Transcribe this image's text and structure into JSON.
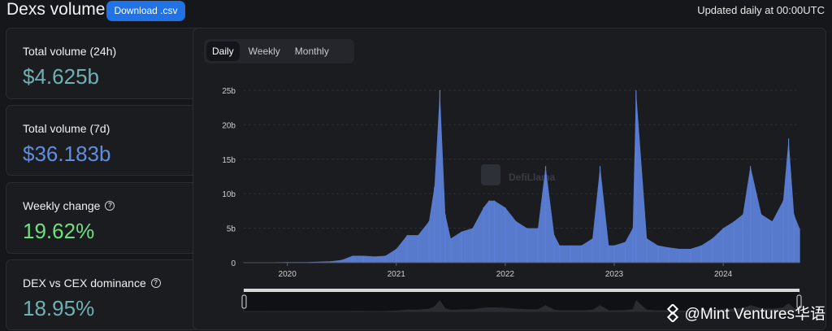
{
  "header": {
    "title": "Dexs volume",
    "download_label": "Download .csv",
    "updated": "Updated daily at 00:00UTC"
  },
  "cards": [
    {
      "label": "Total volume (24h)",
      "value": "$4.625b",
      "color": "#6fb0b4",
      "help": false
    },
    {
      "label": "Total volume (7d)",
      "value": "$36.183b",
      "color": "#5f8de0",
      "help": false
    },
    {
      "label": "Weekly change",
      "value": "19.62%",
      "color": "#6fe07f",
      "help": true
    },
    {
      "label": "DEX vs CEX dominance",
      "value": "18.95%",
      "color": "#6fb0b4",
      "help": true
    }
  ],
  "tabs": [
    "Daily",
    "Weekly",
    "Monthly"
  ],
  "active_tab": "Daily",
  "brand": {
    "watermark": "DefiLlama",
    "overlay_text": "@Mint Ventures华语"
  },
  "chart_data": {
    "type": "bar",
    "title": "",
    "xlabel": "",
    "ylabel": "",
    "series_color": "#5c7fd6",
    "y_ticks": [
      "25b",
      "20b",
      "15b",
      "10b",
      "5b",
      "0"
    ],
    "y_tick_values": [
      25,
      20,
      15,
      10,
      5,
      0
    ],
    "x_ticks": [
      "2020",
      "2021",
      "2022",
      "2023",
      "2024"
    ],
    "ylim": [
      0,
      25
    ],
    "xlim": [
      2019.6,
      2024.7
    ],
    "series": [
      {
        "x": [
          2019.6,
          2019.8,
          2020.0,
          2020.2,
          2020.4,
          2020.5,
          2020.6,
          2020.7,
          2020.8,
          2020.9,
          2021.0,
          2021.1,
          2021.2,
          2021.3,
          2021.35,
          2021.4,
          2021.45,
          2021.5,
          2021.6,
          2021.7,
          2021.8,
          2021.85,
          2021.9,
          2022.0,
          2022.1,
          2022.2,
          2022.3,
          2022.37,
          2022.45,
          2022.5,
          2022.6,
          2022.7,
          2022.8,
          2022.87,
          2022.95,
          2023.0,
          2023.1,
          2023.17,
          2023.2,
          2023.3,
          2023.4,
          2023.5,
          2023.6,
          2023.7,
          2023.8,
          2023.9,
          2024.0,
          2024.1,
          2024.18,
          2024.25,
          2024.35,
          2024.45,
          2024.55,
          2024.6,
          2024.65,
          2024.7
        ],
        "y": [
          0.05,
          0.05,
          0.1,
          0.1,
          0.2,
          0.4,
          1.0,
          1.0,
          0.9,
          1.0,
          2.0,
          4.0,
          4.0,
          6.0,
          11.0,
          25.0,
          7.0,
          3.5,
          4.5,
          5.0,
          8.0,
          9.0,
          9.0,
          8.0,
          6.0,
          5.0,
          5.0,
          14.0,
          4.0,
          2.5,
          2.5,
          2.5,
          3.5,
          14.0,
          2.5,
          2.5,
          3.0,
          5.0,
          25.0,
          3.5,
          2.5,
          2.2,
          2.0,
          2.0,
          2.5,
          3.5,
          5.0,
          6.0,
          7.0,
          14.0,
          7.0,
          6.0,
          9.0,
          18.0,
          7.0,
          5.0
        ]
      }
    ]
  }
}
